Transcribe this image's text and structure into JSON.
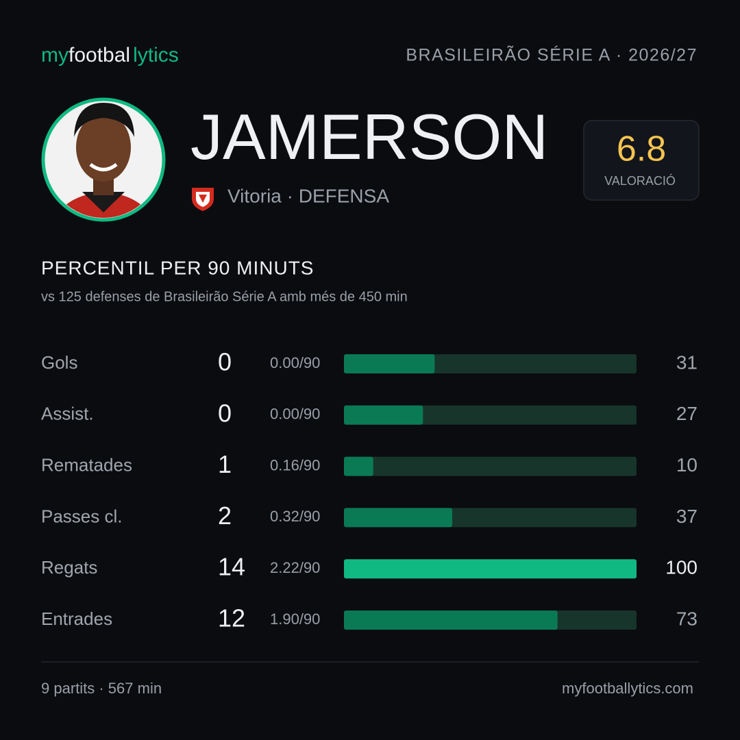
{
  "header": {
    "brand": [
      "my",
      "footbal",
      "lytics"
    ],
    "league": "BRASILEIRÃO SÉRIE A · 2026/27"
  },
  "player": {
    "name": "JAMERSON",
    "team_line": "Vitoria · DEFENSA",
    "rating": 6.8,
    "rating_label": "VALORACIÓ"
  },
  "section": {
    "title": "PERCENTIL PER 90 MINUTS",
    "subtitle": "vs 125 defenses de Brasileirão Série A amb més de 450 min"
  },
  "stats": {
    "xlim": [
      0,
      100
    ],
    "color": "#0a7a55",
    "highlight_color": "#10b981",
    "track_color": "#17352a",
    "rows": [
      {
        "label": "Gols",
        "total": 0,
        "per90": "0.00/90",
        "percentile": 31
      },
      {
        "label": "Assist.",
        "total": 0,
        "per90": "0.00/90",
        "percentile": 27
      },
      {
        "label": "Rematades",
        "total": 1,
        "per90": "0.16/90",
        "percentile": 10
      },
      {
        "label": "Passes cl.",
        "total": 2,
        "per90": "0.32/90",
        "percentile": 37
      },
      {
        "label": "Regats",
        "total": 14,
        "per90": "2.22/90",
        "percentile": 100
      },
      {
        "label": "Entrades",
        "total": 12,
        "per90": "1.90/90",
        "percentile": 73
      }
    ]
  },
  "footer": {
    "left": "9 partits · 567 min",
    "right": "myfootballytics.com"
  }
}
